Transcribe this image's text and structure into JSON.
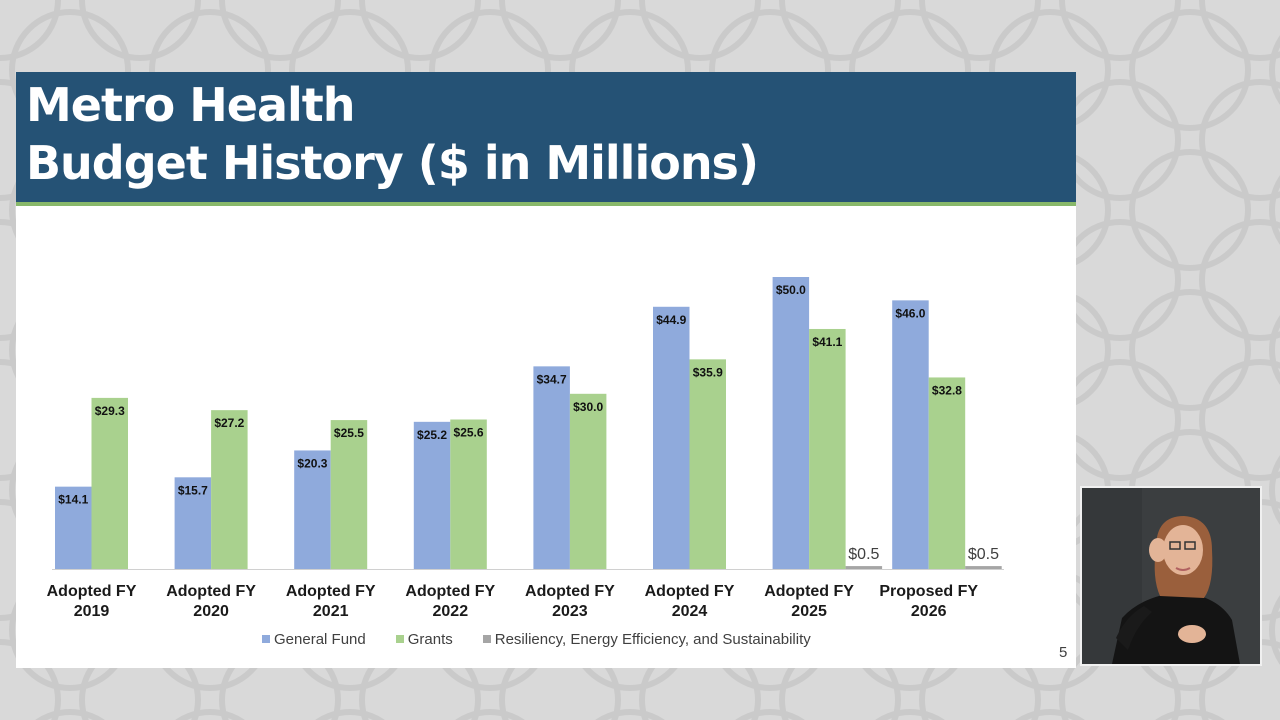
{
  "slide": {
    "title_line1": "Metro Health",
    "title_line2": "Budget History ($ in Millions)",
    "page_number": "5",
    "colors": {
      "title_bar": "#255275",
      "accent_rule": "#88b86a"
    }
  },
  "chart_data": {
    "type": "bar",
    "title": "Metro Health Budget History ($ in Millions)",
    "categories": [
      [
        "Adopted FY",
        "2019"
      ],
      [
        "Adopted FY",
        "2020"
      ],
      [
        "Adopted FY",
        "2021"
      ],
      [
        "Adopted FY",
        "2022"
      ],
      [
        "Adopted FY",
        "2023"
      ],
      [
        "Adopted FY",
        "2024"
      ],
      [
        "Adopted FY",
        "2025"
      ],
      [
        "Proposed FY",
        "2026"
      ]
    ],
    "series": [
      {
        "name": "General Fund",
        "color": "#8faadc",
        "values": [
          14.1,
          15.7,
          20.3,
          25.2,
          34.7,
          44.9,
          50.0,
          46.0
        ],
        "labels": [
          "$14.1",
          "$15.7",
          "$20.3",
          "$25.2",
          "$34.7",
          "$44.9",
          "$50.0",
          "$46.0"
        ]
      },
      {
        "name": "Grants",
        "color": "#a9d18e",
        "values": [
          29.3,
          27.2,
          25.5,
          25.6,
          30.0,
          35.9,
          41.1,
          32.8
        ],
        "labels": [
          "$29.3",
          "$27.2",
          "$25.5",
          "$25.6",
          "$30.0",
          "$35.9",
          "$41.1",
          "$32.8"
        ]
      },
      {
        "name": "Resiliency, Energy Efficiency, and Sustainability",
        "color": "#a5a5a5",
        "values": [
          null,
          null,
          null,
          null,
          null,
          null,
          0.5,
          0.5
        ],
        "labels": [
          "",
          "",
          "",
          "",
          "",
          "",
          "$0.5",
          "$0.5"
        ]
      }
    ],
    "ylim": [
      0,
      50
    ],
    "grid": false,
    "legend_position": "bottom"
  }
}
